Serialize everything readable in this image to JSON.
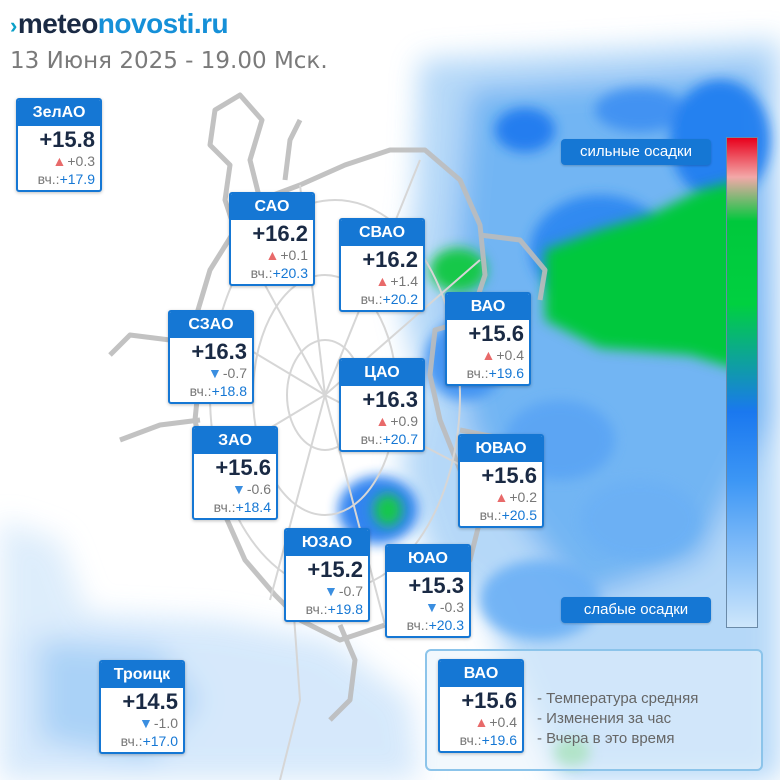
{
  "header": {
    "logo_mark": "›",
    "logo_part1": "meteo",
    "logo_part2": "novosti.ru",
    "subtitle": "13 Июня 2025 - 19.00 Мск."
  },
  "districts": [
    {
      "name": "ЗелАО",
      "temp": "+15.8",
      "trend": "up",
      "delta": "+0.3",
      "yest_label": "вч.:",
      "yesterday": "+17.9"
    },
    {
      "name": "САО",
      "temp": "+16.2",
      "trend": "up",
      "delta": "+0.1",
      "yest_label": "вч.:",
      "yesterday": "+20.3"
    },
    {
      "name": "СВАО",
      "temp": "+16.2",
      "trend": "up",
      "delta": "+1.4",
      "yest_label": "вч.:",
      "yesterday": "+20.2"
    },
    {
      "name": "ВАО",
      "temp": "+15.6",
      "trend": "up",
      "delta": "+0.4",
      "yest_label": "вч.:",
      "yesterday": "+19.6"
    },
    {
      "name": "СЗАО",
      "temp": "+16.3",
      "trend": "down",
      "delta": "-0.7",
      "yest_label": "вч.:",
      "yesterday": "+18.8"
    },
    {
      "name": "ЦАО",
      "temp": "+16.3",
      "trend": "up",
      "delta": "+0.9",
      "yest_label": "вч.:",
      "yesterday": "+20.7"
    },
    {
      "name": "ЗАО",
      "temp": "+15.6",
      "trend": "down",
      "delta": "-0.6",
      "yest_label": "вч.:",
      "yesterday": "+18.4"
    },
    {
      "name": "ЮВАО",
      "temp": "+15.6",
      "trend": "up",
      "delta": "+0.2",
      "yest_label": "вч.:",
      "yesterday": "+20.5"
    },
    {
      "name": "ЮЗАО",
      "temp": "+15.2",
      "trend": "down",
      "delta": "-0.7",
      "yest_label": "вч.:",
      "yesterday": "+19.8"
    },
    {
      "name": "ЮАО",
      "temp": "+15.3",
      "trend": "down",
      "delta": "-0.3",
      "yest_label": "вч.:",
      "yesterday": "+20.3"
    },
    {
      "name": "Троицк",
      "temp": "+14.5",
      "trend": "down",
      "delta": "-1.0",
      "yest_label": "вч.:",
      "yesterday": "+17.0"
    }
  ],
  "scale": {
    "top_label": "сильные осадки",
    "bottom_label": "слабые осадки",
    "colors": [
      "#e8001c",
      "#00c83c",
      "#1a78ef",
      "#cde6fb"
    ]
  },
  "legend": {
    "example": {
      "name": "ВАО",
      "temp": "+15.6",
      "trend": "up",
      "delta": "+0.4",
      "yest_label": "вч.:",
      "yesterday": "+19.6"
    },
    "lines": [
      "- Температура средняя",
      "- Изменения за час",
      "- Вчера в это время"
    ]
  },
  "icons": {
    "up": "triangle-up-icon",
    "down": "triangle-down-icon"
  },
  "colors": {
    "accent": "#1577d4",
    "trend_up": "#e86a6a",
    "trend_down": "#3a8ee0",
    "rain_light": "#3c96f5",
    "rain_heavy": "#00c83c"
  }
}
